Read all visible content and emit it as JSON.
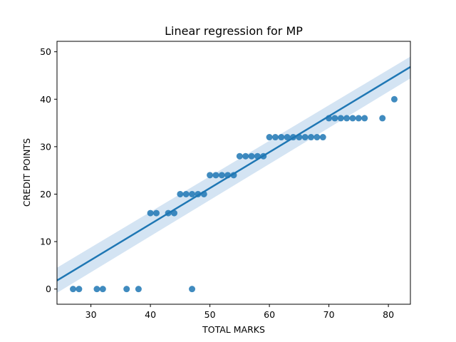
{
  "chart_data": {
    "type": "scatter",
    "title": "Linear regression for MP",
    "xlabel": "TOTAL MARKS",
    "ylabel": "CREDIT POINTS",
    "xlim": [
      24.3,
      83.7
    ],
    "ylim": [
      -3.2,
      52.2
    ],
    "x_ticks": [
      30,
      40,
      50,
      60,
      70,
      80
    ],
    "y_ticks": [
      0,
      10,
      20,
      30,
      40,
      50
    ],
    "grid": false,
    "legend": "none",
    "colors": {
      "points": "#1f77b4",
      "line": "#1f77b4",
      "band": "#c6dbef"
    },
    "points": [
      [
        27,
        0
      ],
      [
        28,
        0
      ],
      [
        31,
        0
      ],
      [
        32,
        0
      ],
      [
        36,
        0
      ],
      [
        38,
        0
      ],
      [
        47,
        0
      ],
      [
        40,
        16
      ],
      [
        41,
        16
      ],
      [
        43,
        16
      ],
      [
        44,
        16
      ],
      [
        45,
        20
      ],
      [
        46,
        20
      ],
      [
        47,
        20
      ],
      [
        48,
        20
      ],
      [
        49,
        20
      ],
      [
        50,
        24
      ],
      [
        51,
        24
      ],
      [
        52,
        24
      ],
      [
        53,
        24
      ],
      [
        54,
        24
      ],
      [
        55,
        28
      ],
      [
        56,
        28
      ],
      [
        57,
        28
      ],
      [
        58,
        28
      ],
      [
        59,
        28
      ],
      [
        60,
        32
      ],
      [
        61,
        32
      ],
      [
        62,
        32
      ],
      [
        63,
        32
      ],
      [
        64,
        32
      ],
      [
        65,
        32
      ],
      [
        66,
        32
      ],
      [
        67,
        32
      ],
      [
        68,
        32
      ],
      [
        69,
        32
      ],
      [
        70,
        36
      ],
      [
        71,
        36
      ],
      [
        72,
        36
      ],
      [
        73,
        36
      ],
      [
        74,
        36
      ],
      [
        75,
        36
      ],
      [
        76,
        36
      ],
      [
        79,
        36
      ],
      [
        81,
        40
      ]
    ],
    "regression": {
      "x": [
        24.3,
        83.7
      ],
      "y": [
        1.8,
        46.8
      ],
      "ci_upper": [
        4.5,
        49.0
      ],
      "ci_lower": [
        -0.8,
        44.4
      ]
    }
  }
}
